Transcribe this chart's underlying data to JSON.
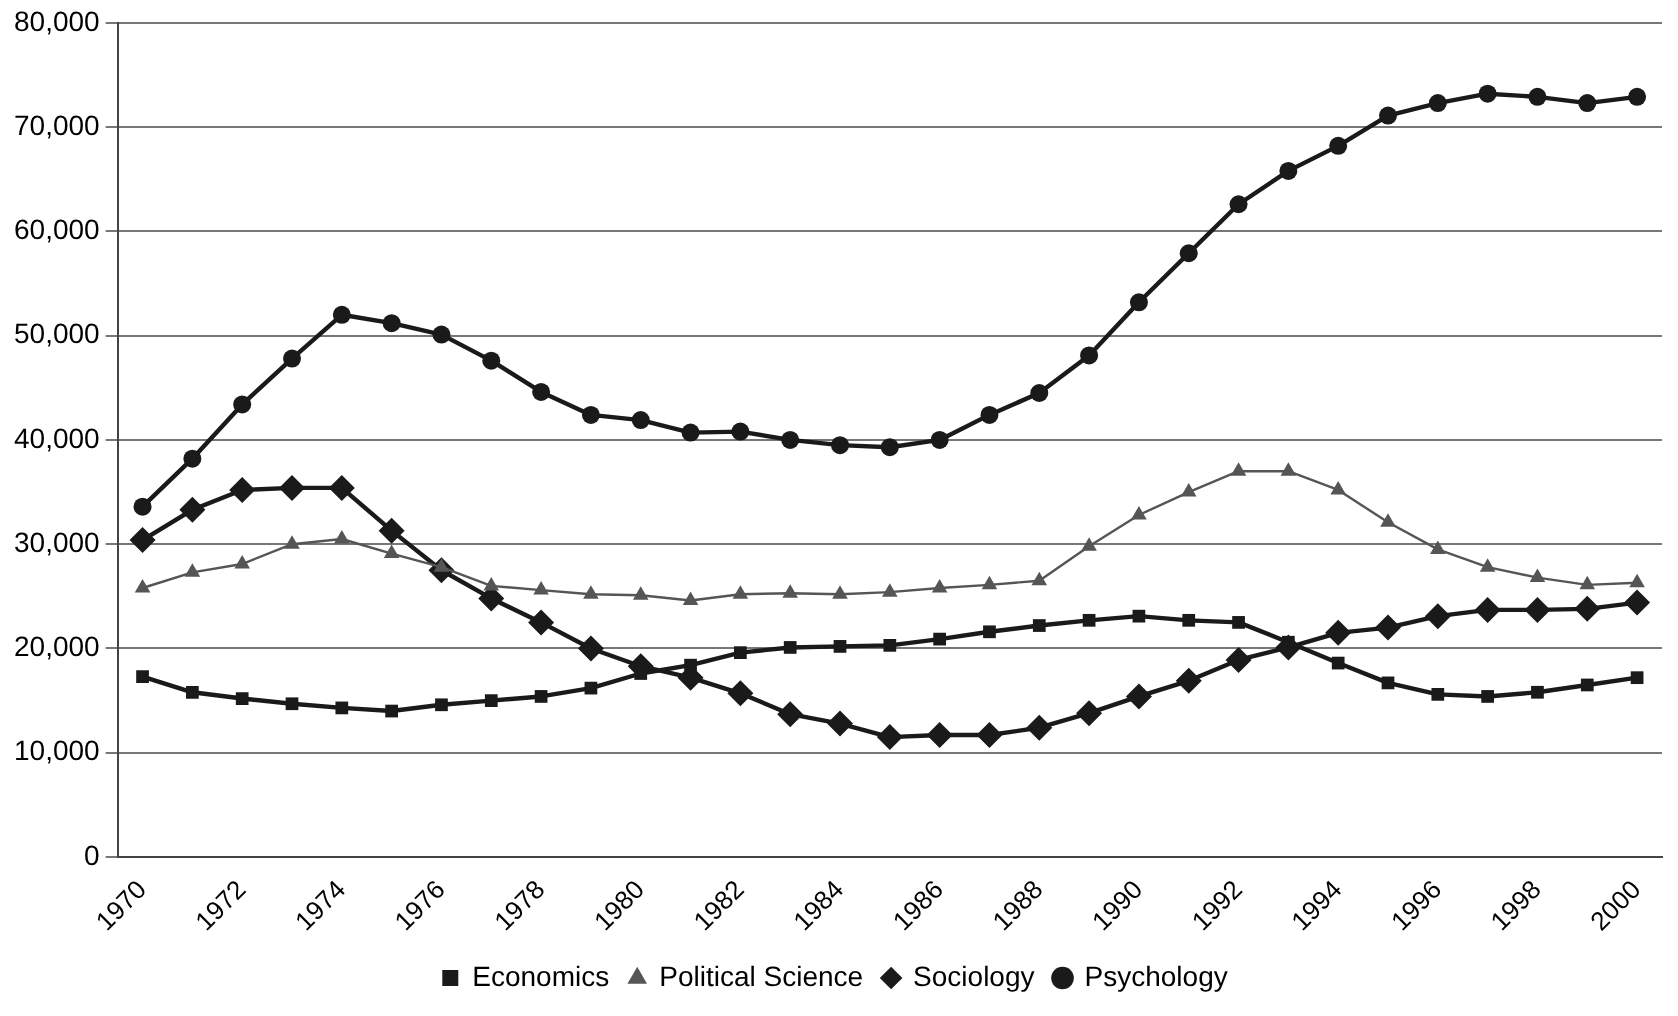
{
  "chart_data": {
    "type": "line",
    "categories": [
      "1970",
      null,
      "1972",
      null,
      "1974",
      null,
      "1976",
      null,
      "1978",
      null,
      "1980",
      null,
      "1982",
      null,
      "1984",
      null,
      "1986",
      null,
      "1988",
      null,
      "1990",
      null,
      "1992",
      null,
      "1994",
      null,
      "1996",
      null,
      "1998",
      null,
      "2000"
    ],
    "ylim": [
      0,
      80000
    ],
    "yticks": [
      {
        "value": 0,
        "label": "0"
      },
      {
        "value": 10000,
        "label": "10,000"
      },
      {
        "value": 20000,
        "label": "20,000"
      },
      {
        "value": 30000,
        "label": "30,000"
      },
      {
        "value": 40000,
        "label": "40,000"
      },
      {
        "value": 50000,
        "label": "50,000"
      },
      {
        "value": 60000,
        "label": "60,000"
      },
      {
        "value": 70000,
        "label": "70,000"
      },
      {
        "value": 80000,
        "label": "80,000"
      }
    ],
    "grid": "y",
    "legend": "bottom",
    "line_style": "solid",
    "series": [
      {
        "name": "Economics",
        "color": "#1a1a1a",
        "marker": "square",
        "values": [
          17300,
          15800,
          15200,
          14700,
          14300,
          14000,
          14600,
          15000,
          15400,
          16200,
          17600,
          18400,
          19600,
          20100,
          20200,
          20300,
          20900,
          21600,
          22200,
          22700,
          23100,
          22700,
          22500,
          20600,
          18600,
          16700,
          15600,
          15400,
          15800,
          16500,
          17200
        ]
      },
      {
        "name": "Political Science",
        "color": "#555555",
        "marker": "triangle",
        "values": [
          25800,
          27300,
          28100,
          30000,
          30500,
          29100,
          27800,
          26000,
          25600,
          25200,
          25100,
          24600,
          25200,
          25300,
          25200,
          25400,
          25800,
          26100,
          26500,
          29800,
          32800,
          35000,
          37000,
          37000,
          35200,
          32100,
          29500,
          27800,
          26800,
          26100,
          26300
        ]
      },
      {
        "name": "Sociology",
        "color": "#1a1a1a",
        "marker": "diamond",
        "values": [
          30400,
          33300,
          35200,
          35400,
          35400,
          31300,
          27500,
          24800,
          22500,
          20000,
          18300,
          17200,
          15700,
          13700,
          12800,
          11500,
          11700,
          11700,
          12400,
          13800,
          15400,
          16900,
          18900,
          20100,
          21500,
          22000,
          23100,
          23700,
          23700,
          23800,
          24400
        ]
      },
      {
        "name": "Psychology",
        "color": "#1a1a1a",
        "marker": "circle",
        "values": [
          33600,
          38200,
          43400,
          47800,
          52000,
          51200,
          50100,
          47600,
          44600,
          42400,
          41900,
          40700,
          40800,
          40000,
          39500,
          39300,
          40000,
          42400,
          44500,
          48100,
          53200,
          57900,
          62600,
          65800,
          68200,
          71100,
          72300,
          73200,
          72900,
          72300,
          72900
        ]
      }
    ]
  }
}
